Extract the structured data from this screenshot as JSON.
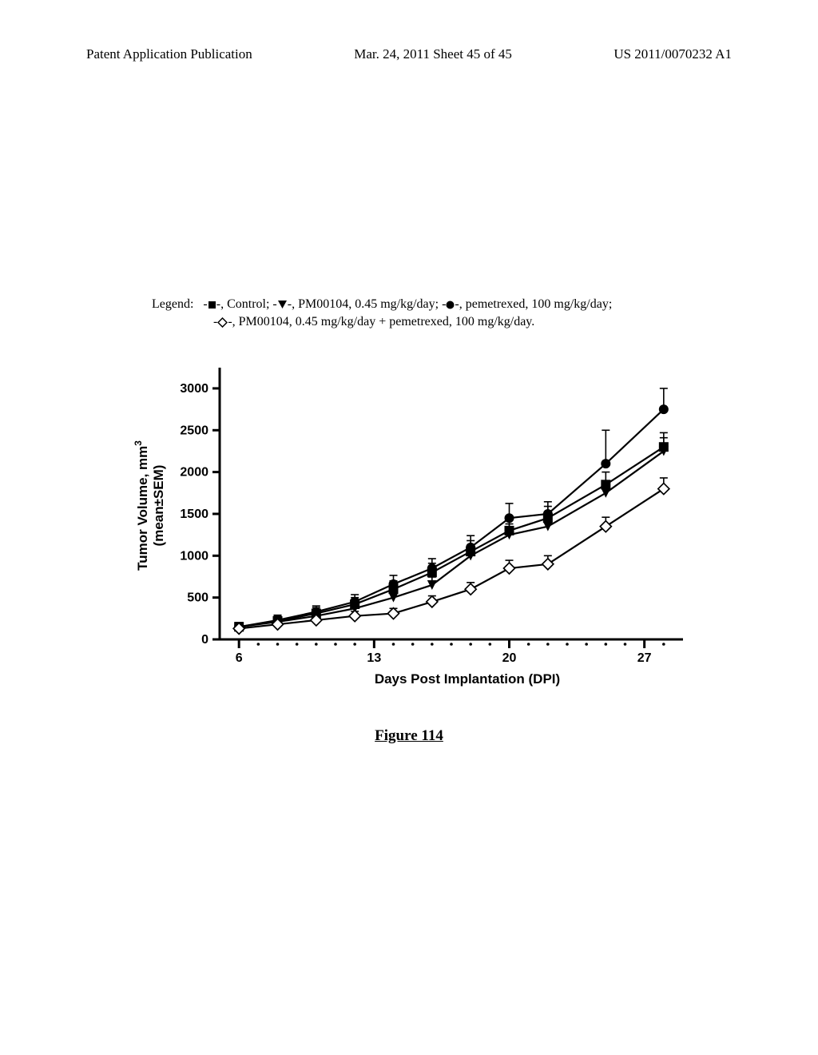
{
  "header": {
    "left": "Patent Application Publication",
    "center": "Mar. 24, 2011  Sheet 45 of 45",
    "right": "US 2011/0070232 A1"
  },
  "legend": {
    "prefix": "Legend:",
    "items": [
      {
        "marker": "filled-square",
        "text": ", Control; "
      },
      {
        "marker": "filled-triangle-down",
        "text": ", PM00104, 0.45 mg/kg/day; "
      },
      {
        "marker": "filled-circle",
        "text": ", pemetrexed, 100 mg/kg/day;"
      },
      {
        "marker": "open-diamond",
        "text": ", PM00104, 0.45 mg/kg/day + pemetrexed, 100 mg/kg/day."
      }
    ]
  },
  "chart": {
    "type": "line",
    "ylabel_line1": "Tumor Volume, mm",
    "ylabel_sup": "3",
    "ylabel_line2": "(mean±SEM)",
    "xlabel": "Days Post Implantation (DPI)",
    "xlim": [
      5,
      29
    ],
    "ylim": [
      0,
      3200
    ],
    "xtick_major": [
      6,
      13,
      20,
      27
    ],
    "xtick_minor": [
      7,
      8,
      9,
      10,
      11,
      12,
      14,
      15,
      16,
      17,
      18,
      19,
      21,
      22,
      23,
      24,
      25,
      26,
      28
    ],
    "ytick": [
      0,
      500,
      1000,
      1500,
      2000,
      2500,
      3000
    ],
    "axis_width": 3,
    "tick_fontsize": 16,
    "label_fontsize": 17,
    "marker_size": 6,
    "line_width": 2.2,
    "error_cap": 5,
    "series": [
      {
        "name": "control",
        "marker": "filled-square",
        "x": [
          6,
          8,
          10,
          12,
          14,
          16,
          18,
          20,
          22,
          25,
          28
        ],
        "y": [
          150,
          220,
          310,
          420,
          600,
          800,
          1050,
          1300,
          1450,
          1850,
          2300
        ],
        "err": [
          50,
          60,
          70,
          80,
          100,
          110,
          130,
          130,
          140,
          150,
          170
        ]
      },
      {
        "name": "pm00104",
        "marker": "filled-triangle-down",
        "x": [
          6,
          8,
          10,
          12,
          14,
          16,
          18,
          20,
          22,
          25,
          28
        ],
        "y": [
          150,
          210,
          280,
          370,
          500,
          650,
          1000,
          1250,
          1350,
          1750,
          2250
        ],
        "err": [
          50,
          55,
          65,
          75,
          90,
          95,
          120,
          130,
          135,
          145,
          160
        ]
      },
      {
        "name": "pemetrexed",
        "marker": "filled-circle",
        "x": [
          6,
          8,
          10,
          12,
          14,
          16,
          18,
          20,
          22,
          25,
          28
        ],
        "y": [
          150,
          230,
          330,
          450,
          660,
          850,
          1100,
          1450,
          1500,
          2100,
          2750
        ],
        "err": [
          50,
          60,
          70,
          85,
          105,
          115,
          140,
          175,
          145,
          400,
          250
        ]
      },
      {
        "name": "combo",
        "marker": "open-diamond",
        "x": [
          6,
          8,
          10,
          12,
          14,
          16,
          18,
          20,
          22,
          25,
          28
        ],
        "y": [
          130,
          180,
          230,
          280,
          310,
          450,
          600,
          850,
          900,
          1350,
          1800
        ],
        "err": [
          40,
          45,
          50,
          55,
          60,
          70,
          80,
          95,
          100,
          110,
          130
        ]
      }
    ]
  },
  "figure_label": "Figure 114"
}
